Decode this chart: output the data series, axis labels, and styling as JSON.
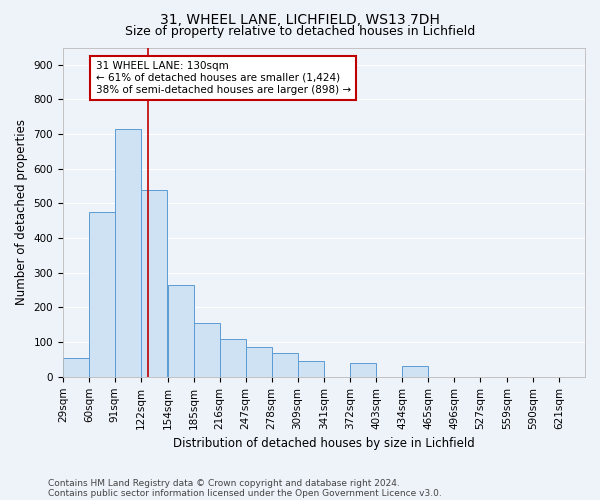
{
  "title1": "31, WHEEL LANE, LICHFIELD, WS13 7DH",
  "title2": "Size of property relative to detached houses in Lichfield",
  "xlabel": "Distribution of detached houses by size in Lichfield",
  "ylabel": "Number of detached properties",
  "footnote1": "Contains HM Land Registry data © Crown copyright and database right 2024.",
  "footnote2": "Contains public sector information licensed under the Open Government Licence v3.0.",
  "bar_left_edges": [
    29,
    60,
    91,
    122,
    154,
    185,
    216,
    247,
    278,
    309,
    341,
    372,
    403,
    434,
    465,
    496,
    527,
    559,
    590,
    621
  ],
  "bar_heights": [
    55,
    475,
    715,
    540,
    265,
    155,
    110,
    85,
    70,
    45,
    0,
    40,
    0,
    30,
    0,
    0,
    0,
    0,
    0,
    0
  ],
  "bin_width": 31,
  "bar_color": "#cfe2f3",
  "bar_edge_color": "#5b9bd5",
  "ref_line_x": 130,
  "ref_line_color": "#c00000",
  "annotation_line1": "31 WHEEL LANE: 130sqm",
  "annotation_line2": "← 61% of detached houses are smaller (1,424)",
  "annotation_line3": "38% of semi-detached houses are larger (898) →",
  "annotation_box_color": "#ffffff",
  "annotation_box_edge_color": "#c00000",
  "ylim": [
    0,
    950
  ],
  "yticks": [
    0,
    100,
    200,
    300,
    400,
    500,
    600,
    700,
    800,
    900
  ],
  "bg_color": "#eef2f9",
  "grid_color": "#ffffff",
  "title1_fontsize": 10,
  "title2_fontsize": 9,
  "xlabel_fontsize": 8.5,
  "ylabel_fontsize": 8.5,
  "tick_fontsize": 7.5,
  "annotation_fontsize": 7.5,
  "footnote_fontsize": 6.5
}
